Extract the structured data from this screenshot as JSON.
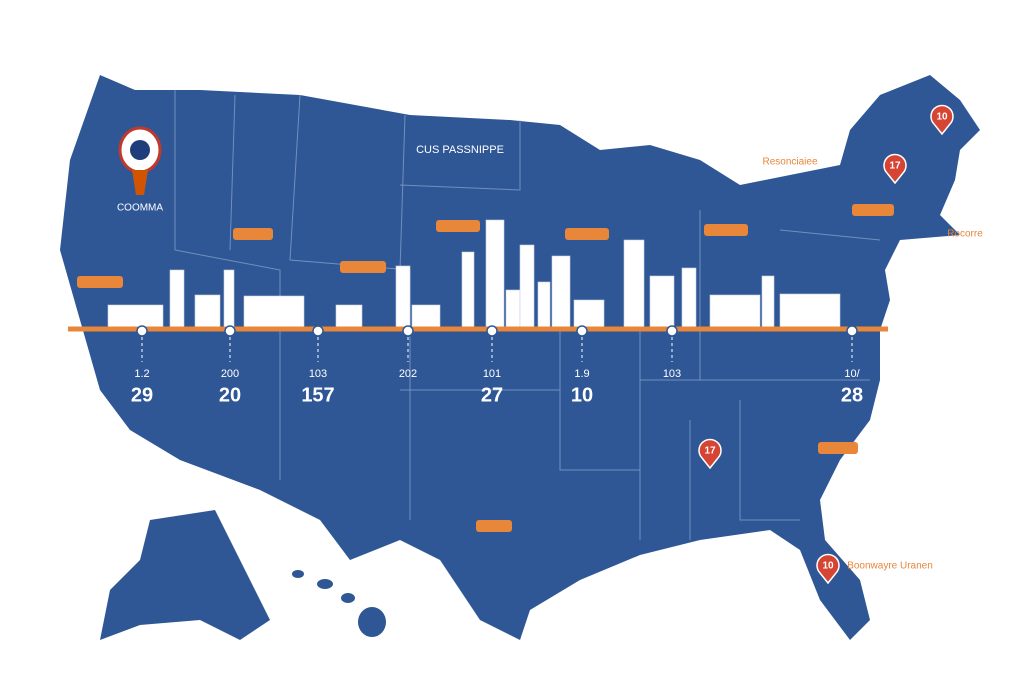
{
  "logo": {
    "label": "COOMMA"
  },
  "header": {
    "title": "CUS PASSNIPPE"
  },
  "stops": [
    {
      "code": "1.2",
      "value": 29
    },
    {
      "code": "200",
      "value": 20
    },
    {
      "code": "103",
      "value": 157
    },
    {
      "code": "202"
    },
    {
      "code": "101",
      "value": 27
    },
    {
      "code": "1.9",
      "value": 10
    },
    {
      "code": "103"
    },
    {
      "code": "10/",
      "value": 28
    }
  ],
  "pins": [
    "10",
    "17",
    "17",
    "10"
  ],
  "side_labels": [
    "Resonciaiee",
    "Rocorre",
    "Boonwayre Uranen"
  ]
}
